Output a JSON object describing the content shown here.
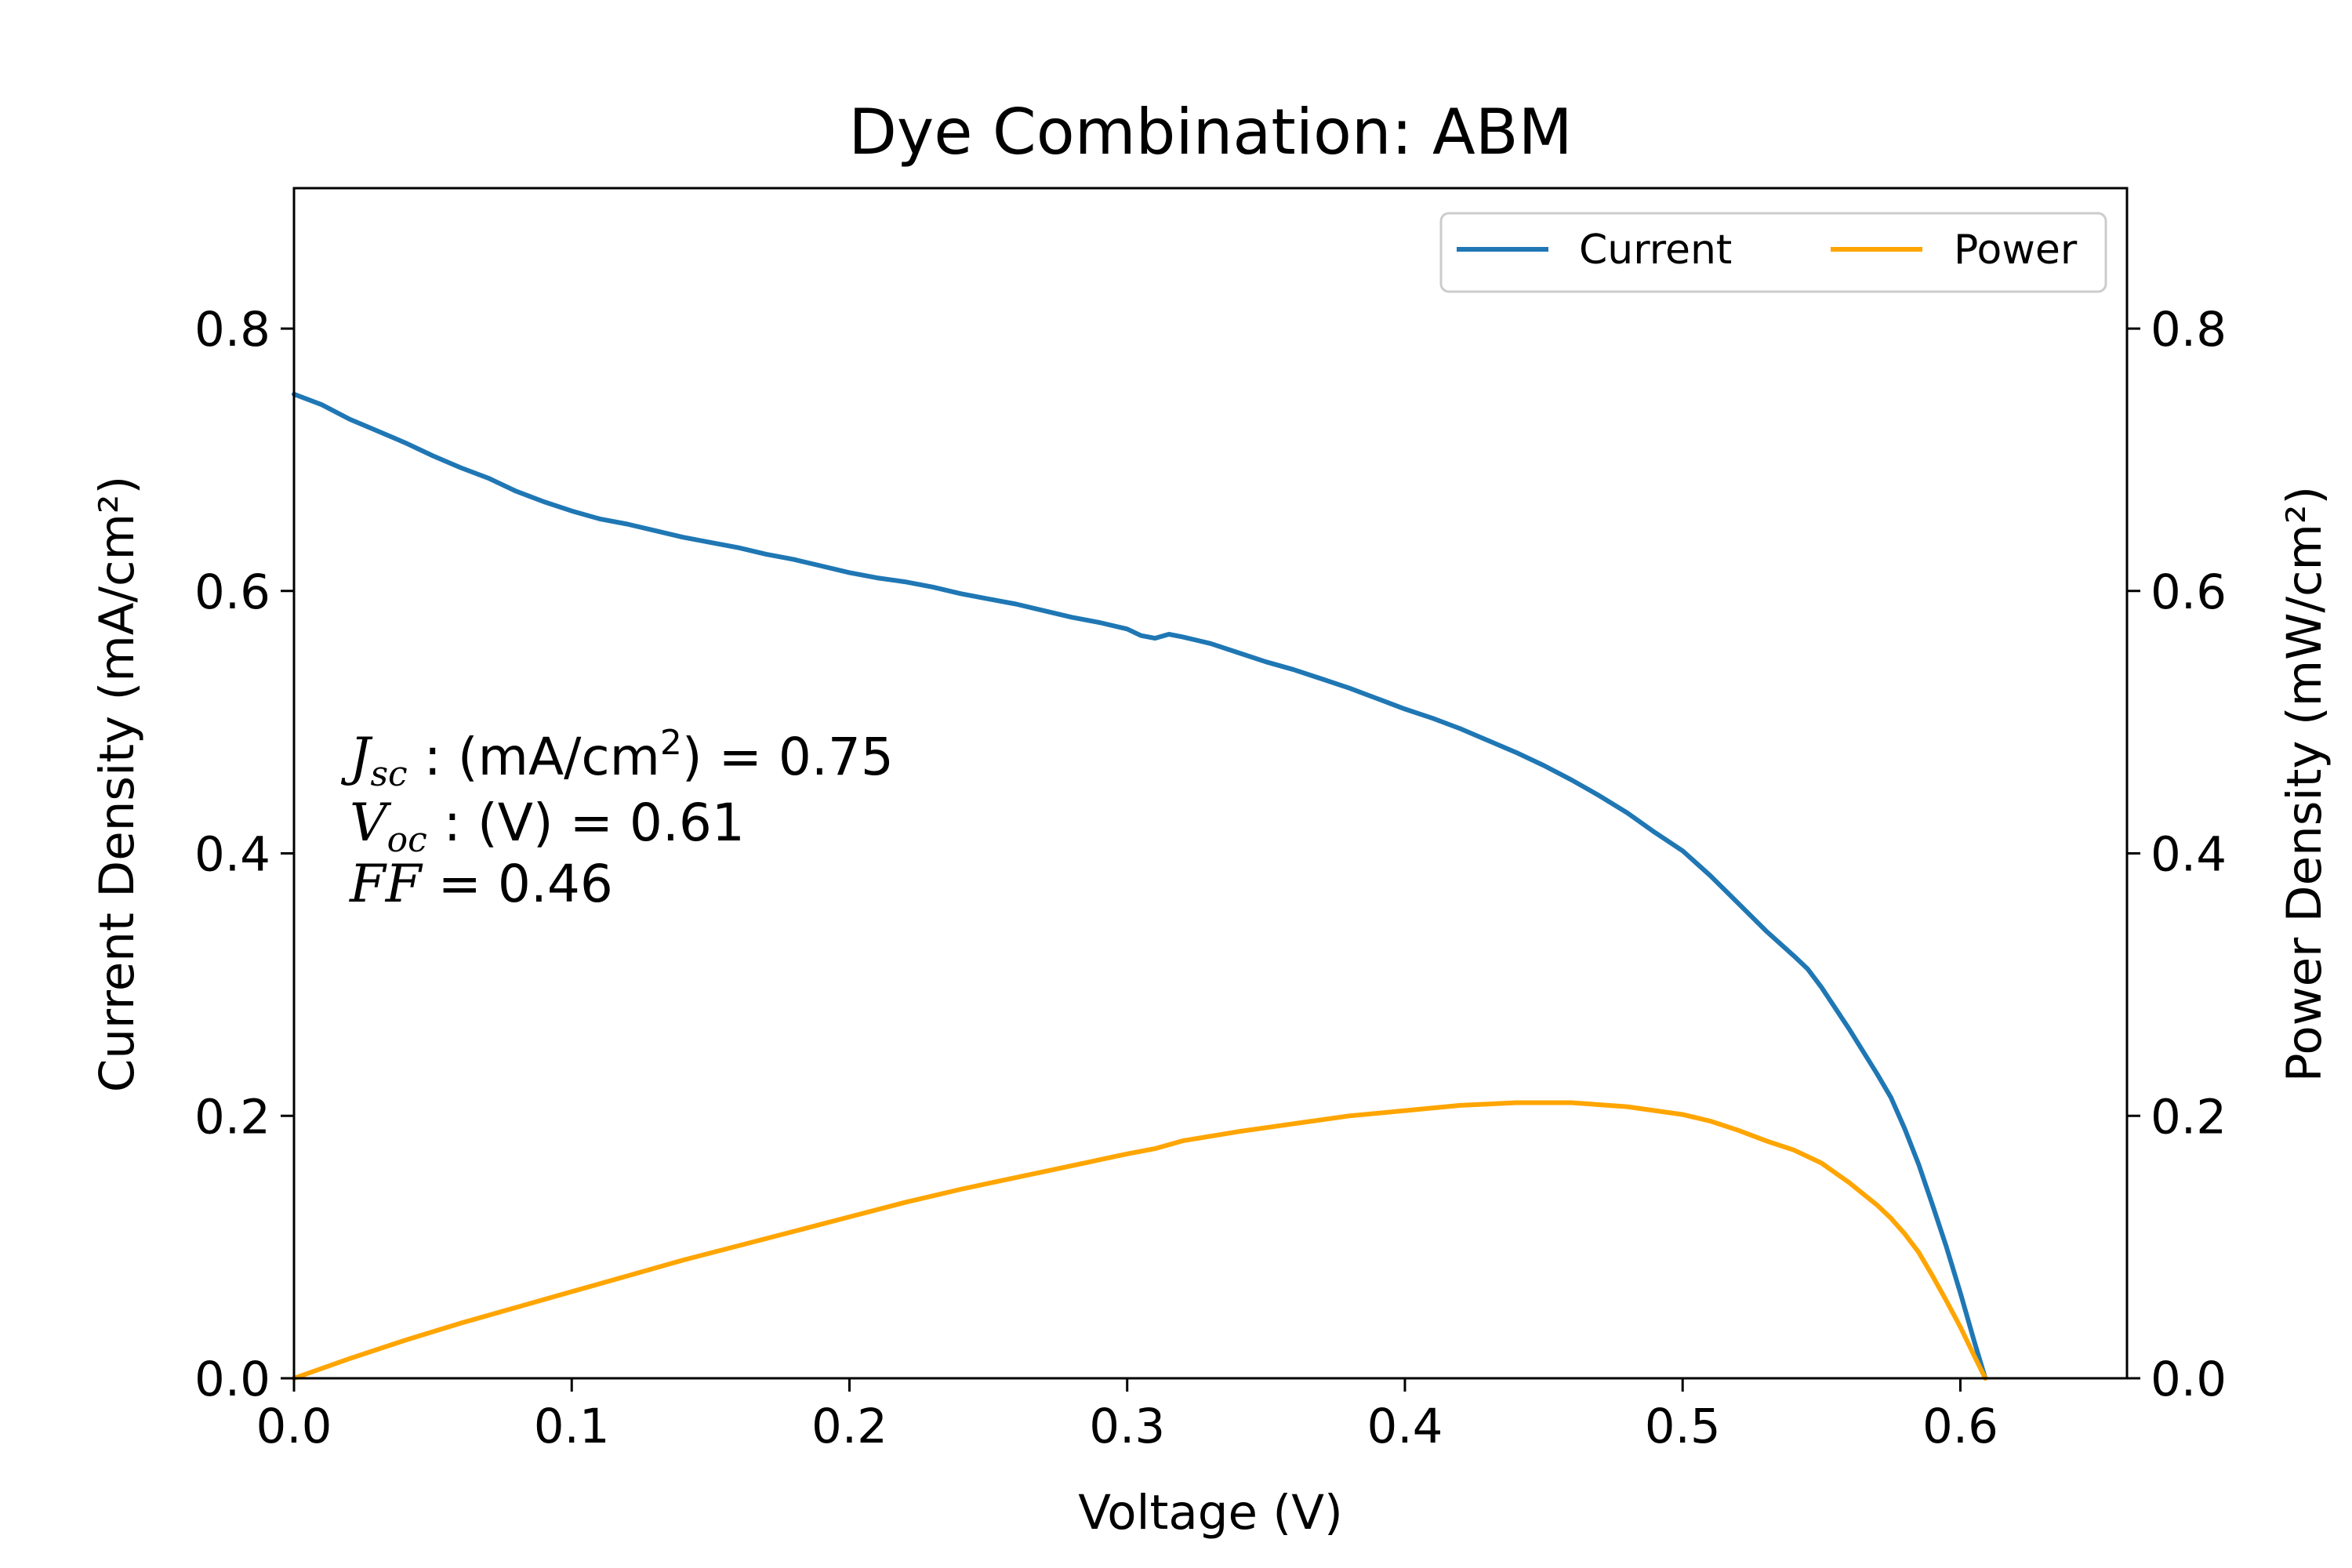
{
  "chart_data": {
    "type": "line",
    "title": "Dye Combination: ABM",
    "xlabel": "Voltage (V)",
    "ylabel_left": "Current Density (mA/cm²)",
    "ylabel_right": "Power Density (mW/cm²)",
    "xlim": [
      0,
      0.66
    ],
    "ylim_left": [
      0,
      0.907
    ],
    "ylim_right": [
      0,
      0.907
    ],
    "xticks": [
      "0.0",
      "0.1",
      "0.2",
      "0.3",
      "0.4",
      "0.5",
      "0.6"
    ],
    "yticks_left": [
      "0.0",
      "0.2",
      "0.4",
      "0.6",
      "0.8"
    ],
    "yticks_right": [
      "0.0",
      "0.2",
      "0.4",
      "0.6",
      "0.8"
    ],
    "legend_position": "top-right",
    "grid": false,
    "annotations": {
      "jsc": {
        "label": "J",
        "sub": "sc",
        "mid": " : (mA/cm",
        "sup": "2",
        "end": ") = 0.75"
      },
      "voc": {
        "label": "V",
        "sub": "oc",
        "mid": " : (V) = 0.61"
      },
      "ff": {
        "label": "FF",
        "mid": " = 0.46"
      }
    },
    "series": [
      {
        "name": "Current",
        "color": "#1f77b4",
        "points": [
          [
            0.0,
            0.75
          ],
          [
            0.01,
            0.742
          ],
          [
            0.02,
            0.731
          ],
          [
            0.03,
            0.722
          ],
          [
            0.04,
            0.713
          ],
          [
            0.05,
            0.703
          ],
          [
            0.06,
            0.694
          ],
          [
            0.07,
            0.686
          ],
          [
            0.08,
            0.676
          ],
          [
            0.09,
            0.668
          ],
          [
            0.1,
            0.661
          ],
          [
            0.11,
            0.655
          ],
          [
            0.12,
            0.651
          ],
          [
            0.13,
            0.646
          ],
          [
            0.14,
            0.641
          ],
          [
            0.15,
            0.637
          ],
          [
            0.16,
            0.633
          ],
          [
            0.17,
            0.628
          ],
          [
            0.18,
            0.624
          ],
          [
            0.19,
            0.619
          ],
          [
            0.2,
            0.614
          ],
          [
            0.21,
            0.61
          ],
          [
            0.22,
            0.607
          ],
          [
            0.23,
            0.603
          ],
          [
            0.24,
            0.598
          ],
          [
            0.25,
            0.594
          ],
          [
            0.26,
            0.59
          ],
          [
            0.27,
            0.585
          ],
          [
            0.28,
            0.58
          ],
          [
            0.29,
            0.576
          ],
          [
            0.3,
            0.571
          ],
          [
            0.305,
            0.566
          ],
          [
            0.31,
            0.564
          ],
          [
            0.315,
            0.567
          ],
          [
            0.32,
            0.565
          ],
          [
            0.33,
            0.56
          ],
          [
            0.34,
            0.553
          ],
          [
            0.35,
            0.546
          ],
          [
            0.36,
            0.54
          ],
          [
            0.37,
            0.533
          ],
          [
            0.38,
            0.526
          ],
          [
            0.39,
            0.518
          ],
          [
            0.4,
            0.51
          ],
          [
            0.41,
            0.503
          ],
          [
            0.42,
            0.495
          ],
          [
            0.43,
            0.486
          ],
          [
            0.44,
            0.477
          ],
          [
            0.45,
            0.467
          ],
          [
            0.46,
            0.456
          ],
          [
            0.47,
            0.444
          ],
          [
            0.48,
            0.431
          ],
          [
            0.49,
            0.416
          ],
          [
            0.5,
            0.402
          ],
          [
            0.51,
            0.383
          ],
          [
            0.52,
            0.362
          ],
          [
            0.53,
            0.341
          ],
          [
            0.54,
            0.322
          ],
          [
            0.545,
            0.312
          ],
          [
            0.55,
            0.298
          ],
          [
            0.56,
            0.266
          ],
          [
            0.57,
            0.232
          ],
          [
            0.575,
            0.214
          ],
          [
            0.58,
            0.19
          ],
          [
            0.585,
            0.163
          ],
          [
            0.59,
            0.132
          ],
          [
            0.595,
            0.1
          ],
          [
            0.6,
            0.065
          ],
          [
            0.605,
            0.028
          ],
          [
            0.609,
            0.0
          ]
        ]
      },
      {
        "name": "Power",
        "color": "#ffa500",
        "points": [
          [
            0.0,
            0.0
          ],
          [
            0.02,
            0.015
          ],
          [
            0.04,
            0.029
          ],
          [
            0.06,
            0.042
          ],
          [
            0.08,
            0.054
          ],
          [
            0.1,
            0.066
          ],
          [
            0.12,
            0.078
          ],
          [
            0.14,
            0.09
          ],
          [
            0.16,
            0.101
          ],
          [
            0.18,
            0.112
          ],
          [
            0.2,
            0.123
          ],
          [
            0.22,
            0.134
          ],
          [
            0.24,
            0.144
          ],
          [
            0.26,
            0.153
          ],
          [
            0.28,
            0.162
          ],
          [
            0.3,
            0.171
          ],
          [
            0.31,
            0.175
          ],
          [
            0.32,
            0.181
          ],
          [
            0.34,
            0.188
          ],
          [
            0.36,
            0.194
          ],
          [
            0.38,
            0.2
          ],
          [
            0.4,
            0.204
          ],
          [
            0.42,
            0.208
          ],
          [
            0.44,
            0.21
          ],
          [
            0.46,
            0.21
          ],
          [
            0.48,
            0.207
          ],
          [
            0.5,
            0.201
          ],
          [
            0.51,
            0.196
          ],
          [
            0.52,
            0.189
          ],
          [
            0.53,
            0.181
          ],
          [
            0.54,
            0.174
          ],
          [
            0.55,
            0.164
          ],
          [
            0.56,
            0.149
          ],
          [
            0.57,
            0.132
          ],
          [
            0.575,
            0.122
          ],
          [
            0.58,
            0.11
          ],
          [
            0.585,
            0.096
          ],
          [
            0.59,
            0.078
          ],
          [
            0.595,
            0.059
          ],
          [
            0.6,
            0.039
          ],
          [
            0.605,
            0.017
          ],
          [
            0.609,
            0.0
          ]
        ]
      }
    ]
  }
}
